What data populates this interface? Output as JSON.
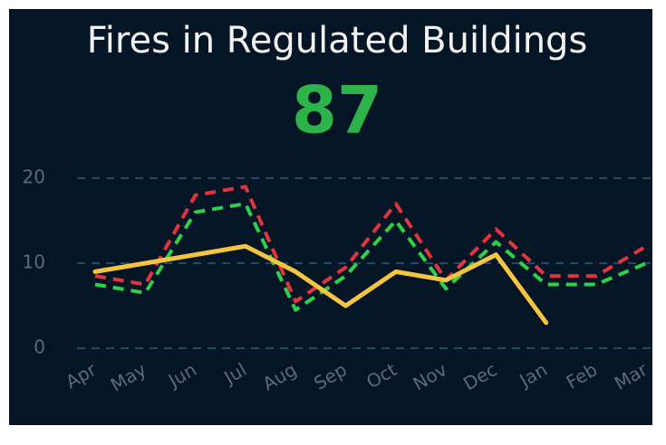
{
  "chart_data": {
    "type": "line",
    "title": "Fires in Regulated Buildings",
    "kpi": 87,
    "categories": [
      "Apr",
      "May",
      "Jun",
      "Jul",
      "Aug",
      "Sep",
      "Oct",
      "Nov",
      "Dec",
      "Jan",
      "Feb",
      "Mar"
    ],
    "series": [
      {
        "color": "#e0343e",
        "dashed": true,
        "values": [
          8.5,
          7.5,
          18,
          19,
          5.5,
          9.5,
          17,
          8,
          14,
          8.5,
          8.5,
          12
        ]
      },
      {
        "color": "#2fd04a",
        "dashed": true,
        "values": [
          7.5,
          6.5,
          16,
          17,
          4.5,
          8.5,
          15,
          7,
          12.5,
          7.5,
          7.5,
          10
        ]
      },
      {
        "color": "#f5c542",
        "dashed": false,
        "values": [
          9,
          10,
          11,
          12,
          9,
          5,
          9,
          8,
          11,
          3,
          null,
          null
        ]
      }
    ],
    "ylim": [
      0,
      20
    ],
    "yticks": [
      0,
      10,
      20
    ],
    "grid": true,
    "kpi_color": "#2db34a"
  }
}
